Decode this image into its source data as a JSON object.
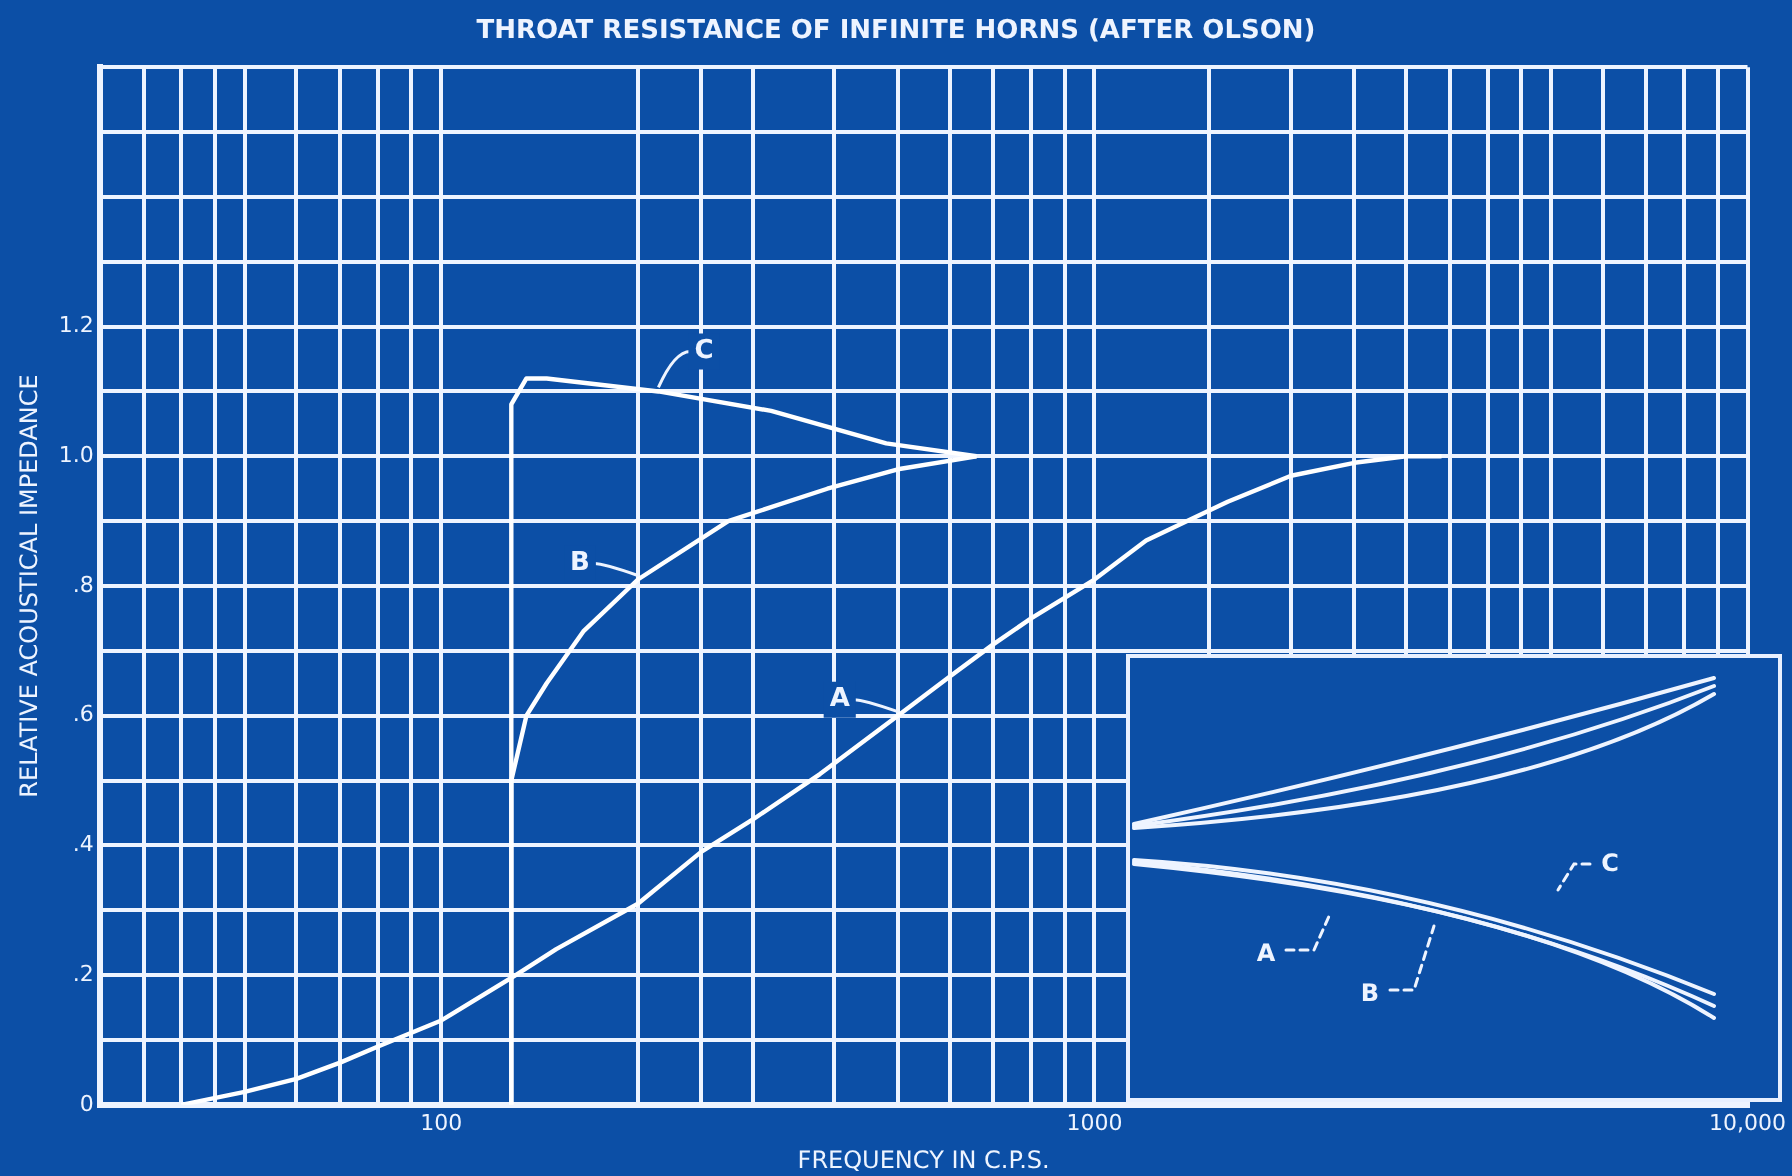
{
  "chart_data": {
    "type": "line",
    "title": "THROAT RESISTANCE OF INFINITE HORNS (AFTER OLSON)",
    "xlabel": "FREQUENCY IN C.P.S.",
    "ylabel": "RELATIVE ACOUSTICAL IMPEDANCE",
    "log": "x",
    "grid": true,
    "legend": false,
    "marker": "none",
    "xlim": [
      30,
      10000
    ],
    "xticks": [
      {
        "value": 30,
        "label": null
      },
      {
        "value": 35,
        "label": null
      },
      {
        "value": 40,
        "label": null
      },
      {
        "value": 45,
        "label": null
      },
      {
        "value": 50,
        "label": null
      },
      {
        "value": 60,
        "label": null
      },
      {
        "value": 70,
        "label": null
      },
      {
        "value": 80,
        "label": null
      },
      {
        "value": 90,
        "label": null
      },
      100,
      {
        "value": 200,
        "label": null
      },
      {
        "value": 250,
        "label": null
      },
      {
        "value": 300,
        "label": null
      },
      {
        "value": 400,
        "label": null
      },
      {
        "value": 500,
        "label": null
      },
      {
        "value": 600,
        "label": null
      },
      {
        "value": 700,
        "label": null
      },
      {
        "value": 800,
        "label": null
      },
      {
        "value": 900,
        "label": null
      },
      1000,
      {
        "value": 1500,
        "label": null
      },
      {
        "value": 2000,
        "label": null
      },
      {
        "value": 2500,
        "label": null
      },
      {
        "value": 3000,
        "label": null
      },
      {
        "value": 3500,
        "label": null
      },
      {
        "value": 4000,
        "label": null
      },
      {
        "value": 4500,
        "label": null
      },
      {
        "value": 5000,
        "label": null
      },
      {
        "value": 6000,
        "label": null
      },
      {
        "value": 7000,
        "label": null
      },
      {
        "value": 8000,
        "label": null
      },
      {
        "value": 9000,
        "label": null
      },
      {
        "value": 10000,
        "label": "10,000"
      }
    ],
    "ylim": [
      0,
      1.6
    ],
    "yticks": [
      0,
      {
        "value": 0.1,
        "label": null
      },
      {
        "value": 0.2,
        "label": ".2"
      },
      {
        "value": 0.3,
        "label": null
      },
      {
        "value": 0.4,
        "label": ".4"
      },
      {
        "value": 0.5,
        "label": null
      },
      {
        "value": 0.6,
        "label": ".6"
      },
      {
        "value": 0.7,
        "label": null
      },
      {
        "value": 0.8,
        "label": ".8"
      },
      {
        "value": 0.9,
        "label": null
      },
      {
        "value": 1.0,
        "label": "1.0"
      },
      {
        "value": 1.1,
        "label": null
      },
      {
        "value": 1.2,
        "label": "1.2"
      },
      {
        "value": 1.3,
        "label": null
      },
      {
        "value": 1.4,
        "label": null
      },
      {
        "value": 1.5,
        "label": null
      },
      {
        "value": 1.6,
        "label": null
      }
    ],
    "series": [
      {
        "name": "A",
        "color": "#ffffff",
        "x": [
          40,
          50,
          60,
          70,
          80,
          100,
          130,
          150,
          200,
          250,
          300,
          380,
          500,
          600,
          700,
          800,
          1000,
          1200,
          1600,
          2000,
          2500,
          3000,
          3400
        ],
        "values": [
          0,
          0.02,
          0.04,
          0.065,
          0.09,
          0.13,
          0.2,
          0.24,
          0.31,
          0.39,
          0.44,
          0.51,
          0.6,
          0.66,
          0.71,
          0.75,
          0.81,
          0.87,
          0.93,
          0.97,
          0.99,
          1.0,
          1.0
        ]
      },
      {
        "name": "B",
        "color": "#ffffff",
        "x": [
          128,
          128,
          135,
          145,
          165,
          200,
          275,
          390,
          500,
          660
        ],
        "values": [
          0,
          0.5,
          0.6,
          0.65,
          0.73,
          0.81,
          0.9,
          0.95,
          0.98,
          1.0
        ]
      },
      {
        "name": "C",
        "color": "#ffffff",
        "x": [
          128,
          128,
          135,
          145,
          215,
          320,
          480,
          660
        ],
        "values": [
          0,
          1.08,
          1.12,
          1.12,
          1.1,
          1.07,
          1.02,
          1.0
        ]
      }
    ]
  }
}
